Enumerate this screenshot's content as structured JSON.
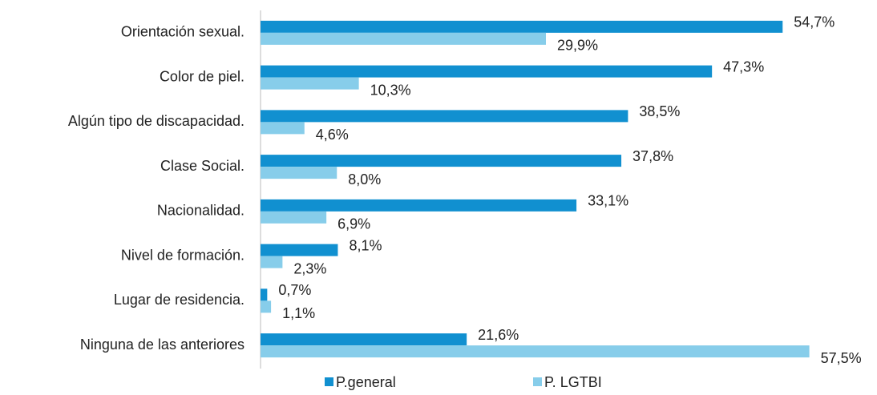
{
  "chart_data": {
    "type": "bar",
    "orientation": "horizontal",
    "categories": [
      "Orientación sexual.",
      "Color de piel.",
      "Algún tipo de discapacidad.",
      "Clase Social.",
      "Nacionalidad.",
      "Nivel de formación.",
      "Lugar de residencia.",
      "Ninguna de las anteriores"
    ],
    "series": [
      {
        "name": "P.general",
        "color": "#1190d0",
        "values": [
          54.7,
          47.3,
          38.5,
          37.8,
          33.1,
          8.1,
          0.7,
          21.6
        ],
        "value_labels": [
          "54,7%",
          "47,3%",
          "38,5%",
          "37,8%",
          "33,1%",
          "8,1%",
          "0,7%",
          "21,6%"
        ]
      },
      {
        "name": "P. LGTBI",
        "color": "#87cdea",
        "values": [
          29.9,
          10.3,
          4.6,
          8.0,
          6.9,
          2.3,
          1.1,
          57.5
        ],
        "value_labels": [
          "29,9%",
          "10,3%",
          "4,6%",
          "8,0%",
          "6,9%",
          "2,3%",
          "1,1%",
          "57,5%"
        ]
      }
    ],
    "xlim": [
      0,
      64
    ],
    "legend": "bottom"
  }
}
